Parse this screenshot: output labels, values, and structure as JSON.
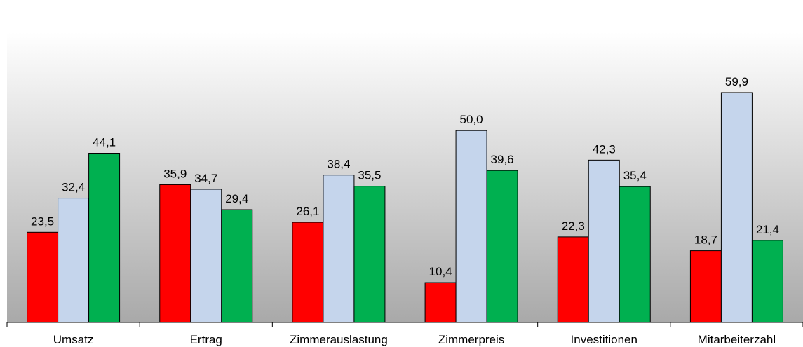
{
  "chart_data": {
    "type": "bar",
    "categories": [
      "Umsatz",
      "Ertrag",
      "Zimmerauslastung",
      "Zimmerpreis",
      "Investitionen",
      "Mitarbeiterzahl"
    ],
    "series": [
      {
        "color": "#ff0000",
        "values": [
          23.5,
          35.9,
          26.1,
          10.4,
          22.3,
          18.7
        ],
        "value_labels": [
          "23,5",
          "35,9",
          "26,1",
          "10,4",
          "22,3",
          "18,7"
        ]
      },
      {
        "color": "#c5d5ec",
        "values": [
          32.4,
          34.7,
          38.4,
          50.0,
          42.3,
          59.9
        ],
        "value_labels": [
          "32,4",
          "34,7",
          "38,4",
          "50,0",
          "42,3",
          "59,9"
        ]
      },
      {
        "color": "#00b050",
        "values": [
          44.1,
          29.4,
          35.5,
          39.6,
          35.4,
          21.4
        ],
        "value_labels": [
          "44,1",
          "29,4",
          "35,5",
          "39,6",
          "35,4",
          "21,4"
        ]
      }
    ],
    "ylim": [
      0,
      84
    ]
  }
}
